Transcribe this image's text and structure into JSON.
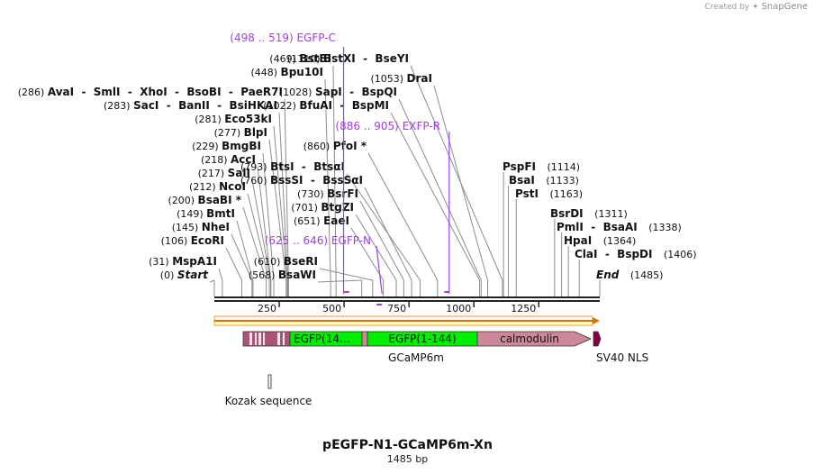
{
  "watermark": {
    "prefix": "Created by",
    "brand": "SnapGene"
  },
  "plasmid": {
    "name": "pEGFP-N1-GCaMP6m-Xn",
    "length_label": "1485 bp",
    "total_bp": 1485
  },
  "ruler": {
    "ticks": [
      250,
      500,
      750,
      1000,
      1250
    ]
  },
  "colors": {
    "enzyme_line": "#8c8c8c",
    "primer": "#a040e0",
    "egfp": "#00ee00",
    "calmodulin": "#cc8899",
    "nls": "#880044",
    "orf_arrow": "#f0a020"
  },
  "enzymes_left": [
    {
      "pos": 0,
      "pos_label": "(0)",
      "name": "Start",
      "italic": true
    },
    {
      "pos": 31,
      "pos_label": "(31)",
      "name": "MspA1I"
    },
    {
      "pos": 106,
      "pos_label": "(106)",
      "name": "EcoRI"
    },
    {
      "pos": 145,
      "pos_label": "(145)",
      "name": "NheI"
    },
    {
      "pos": 149,
      "pos_label": "(149)",
      "name": "BmtI"
    },
    {
      "pos": 200,
      "pos_label": "(200)",
      "name": "BsaBI *"
    },
    {
      "pos": 212,
      "pos_label": "(212)",
      "name": "NcoI"
    },
    {
      "pos": 217,
      "pos_label": "(217)",
      "name": "SalI"
    },
    {
      "pos": 218,
      "pos_label": "(218)",
      "name": "AccI"
    },
    {
      "pos": 229,
      "pos_label": "(229)",
      "name": "BmgBI"
    },
    {
      "pos": 277,
      "pos_label": "(277)",
      "name": "BlpI"
    },
    {
      "pos": 281,
      "pos_label": "(281)",
      "name": "Eco53kI"
    },
    {
      "pos": 283,
      "pos_label": "(283)",
      "name": "SacI  -  BanII  -  BsiHKAI"
    },
    {
      "pos": 286,
      "pos_label": "(286)",
      "name": "AvaI  -  SmlI  -  XhoI  -  BsoBI  -  PaeR7I"
    },
    {
      "pos": 448,
      "pos_label": "(448)",
      "name": "Bpu10I"
    },
    {
      "pos": 469,
      "pos_label": "(469)",
      "name": "BstBI"
    }
  ],
  "enzymes_mid": [
    {
      "pos": 568,
      "pos_label": "(568)",
      "name": "BsaWI"
    },
    {
      "pos": 610,
      "pos_label": "(610)",
      "name": "BseRI"
    },
    {
      "pos": 651,
      "pos_label": "(651)",
      "name": "EaeI"
    },
    {
      "pos": 701,
      "pos_label": "(701)",
      "name": "BtgZI"
    },
    {
      "pos": 730,
      "pos_label": "(730)",
      "name": "BsrFI"
    },
    {
      "pos": 760,
      "pos_label": "(760)",
      "name": "BssSI  -  BssSαI"
    },
    {
      "pos": 793,
      "pos_label": "(793)",
      "name": "BtsI  -  BtsαI"
    },
    {
      "pos": 860,
      "pos_label": "(860)",
      "name": "PfoI *"
    },
    {
      "pos": 1022,
      "pos_label": "(1022)",
      "name": "BfuAI  -  BspMI"
    },
    {
      "pos": 1028,
      "pos_label": "(1028)",
      "name": "SapI  -  BspQI"
    },
    {
      "pos": 1053,
      "pos_label": "(1053)",
      "name": "DraI"
    },
    {
      "pos": 1110,
      "pos_label": "(1110)",
      "name": "BstXI  -  BseYI"
    }
  ],
  "enzymes_right": [
    {
      "pos": 1114,
      "pos_label": "(1114)",
      "name": "PspFI"
    },
    {
      "pos": 1133,
      "pos_label": "(1133)",
      "name": "BsaI"
    },
    {
      "pos": 1163,
      "pos_label": "(1163)",
      "name": "PstI"
    },
    {
      "pos": 1311,
      "pos_label": "(1311)",
      "name": "BsrDI"
    },
    {
      "pos": 1338,
      "pos_label": "(1338)",
      "name": "PmlI  -  BsaAI"
    },
    {
      "pos": 1364,
      "pos_label": "(1364)",
      "name": "HpaI"
    },
    {
      "pos": 1406,
      "pos_label": "(1406)",
      "name": "ClaI  -  BspDI"
    },
    {
      "pos": 1485,
      "pos_label": "(1485)",
      "name": "End",
      "italic": true
    }
  ],
  "primers": [
    {
      "range_label": "(498 .. 519)",
      "name": "EGFP-C",
      "start": 498,
      "end": 519
    },
    {
      "range_label": "(886 .. 905)",
      "name": "EXFP-R",
      "start": 886,
      "end": 905
    },
    {
      "range_label": "(625 .. 646)",
      "name": "EGFP-N",
      "start": 625,
      "end": 646
    }
  ],
  "features": {
    "gcamp_label": "GCaMP6m",
    "egfp1_label": "EGFP(14…",
    "egfp2_label": "EGFP(1-144)",
    "calmodulin_label": "calmodulin",
    "nls_label": "SV40 NLS",
    "kozak_label": "Kozak sequence"
  }
}
